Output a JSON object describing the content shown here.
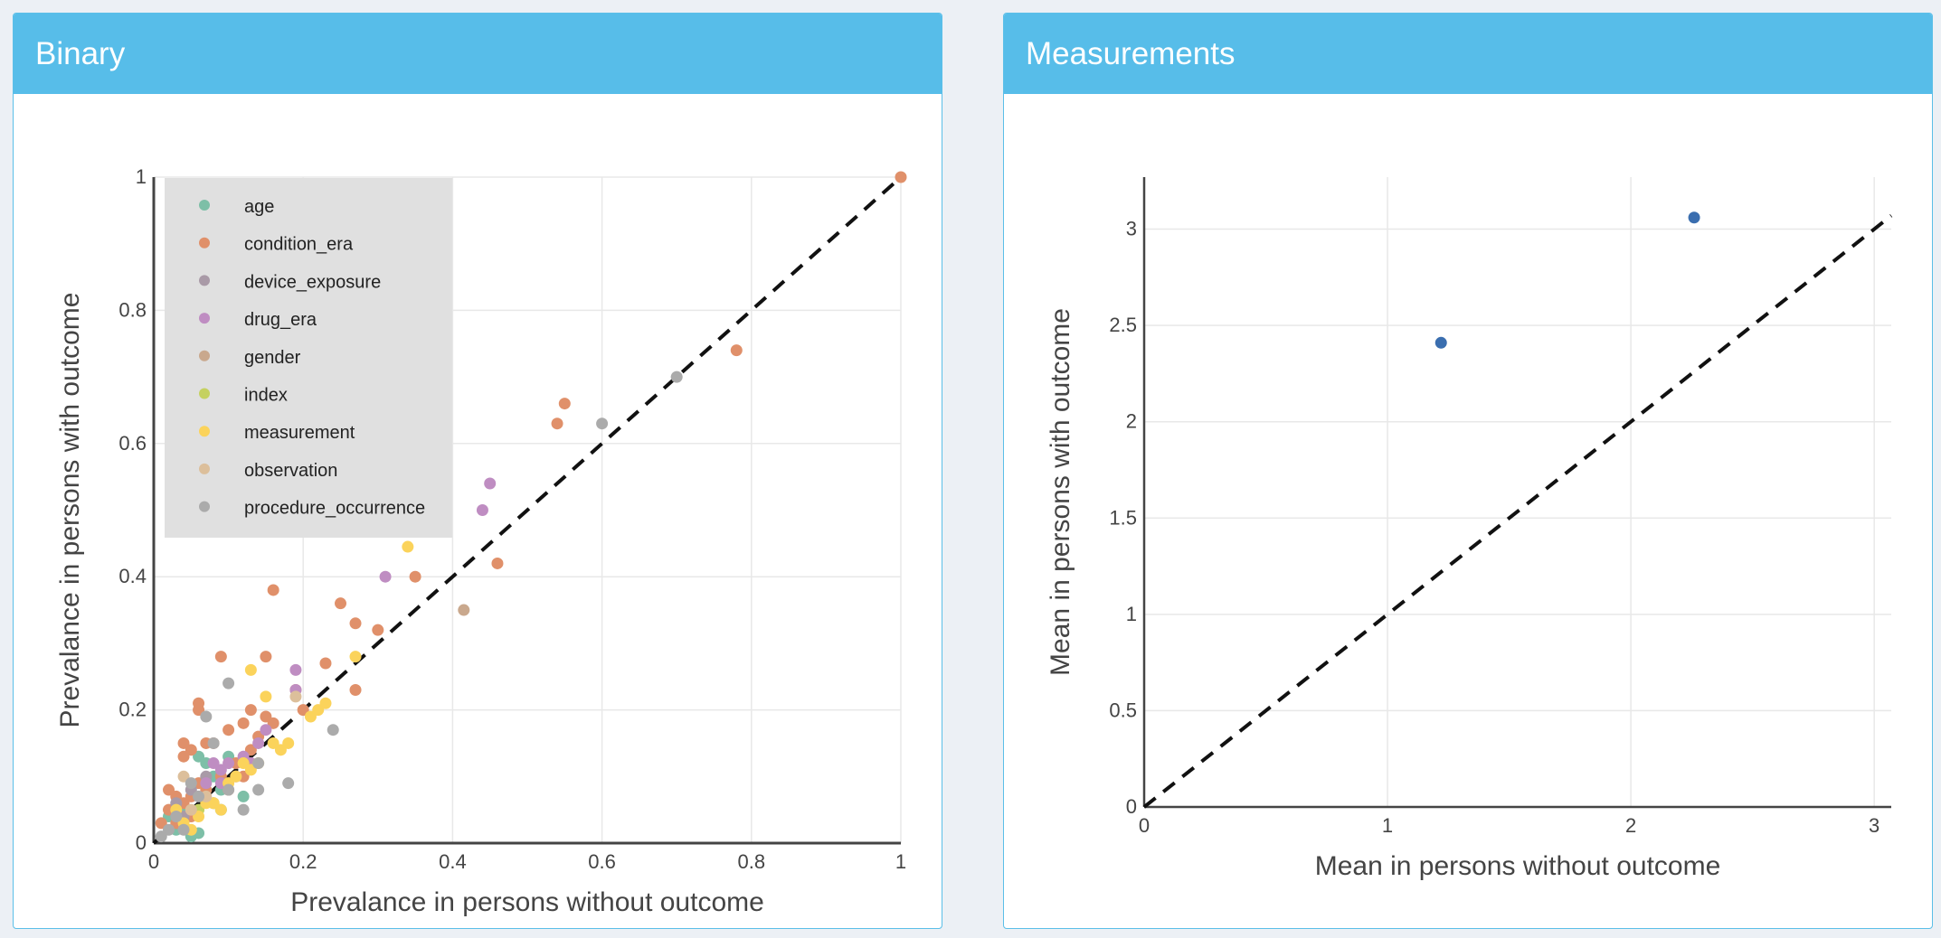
{
  "panels": {
    "binary": {
      "title": "Binary"
    },
    "measurements": {
      "title": "Measurements"
    }
  },
  "chart_data": [
    {
      "type": "scatter",
      "title": "Binary",
      "xlabel": "Prevalance in persons without outcome",
      "ylabel": "Prevalance in persons with outcome",
      "xlim": [
        0,
        1
      ],
      "ylim": [
        0,
        1
      ],
      "xticks": [
        0,
        0.2,
        0.4,
        0.6,
        0.8,
        1
      ],
      "yticks": [
        0,
        0.2,
        0.4,
        0.6,
        0.8,
        1
      ],
      "xtick_labels": [
        "0",
        "0.2",
        "0.4",
        "0.6",
        "0.8",
        "1"
      ],
      "ytick_labels": [
        "0",
        "0.2",
        "0.4",
        "0.6",
        "0.8",
        "1"
      ],
      "grid": true,
      "reference_line": "y = x (dashed)",
      "legend_position": "top-left",
      "series": [
        {
          "name": "age",
          "color": "#7dbfa7",
          "points": [
            [
              0.03,
              0.02
            ],
            [
              0.05,
              0.01
            ],
            [
              0.06,
              0.015
            ],
            [
              0.07,
              0.12
            ],
            [
              0.06,
              0.13
            ],
            [
              0.09,
              0.08
            ],
            [
              0.1,
              0.13
            ],
            [
              0.09,
              0.05
            ],
            [
              0.12,
              0.07
            ],
            [
              0.04,
              0.05
            ],
            [
              0.02,
              0.04
            ],
            [
              0.08,
              0.1
            ]
          ]
        },
        {
          "name": "condition_era",
          "color": "#e0906a",
          "points": [
            [
              1.0,
              1.0
            ],
            [
              0.78,
              0.74
            ],
            [
              0.55,
              0.66
            ],
            [
              0.54,
              0.63
            ],
            [
              0.46,
              0.42
            ],
            [
              0.35,
              0.4
            ],
            [
              0.3,
              0.32
            ],
            [
              0.27,
              0.33
            ],
            [
              0.25,
              0.36
            ],
            [
              0.27,
              0.23
            ],
            [
              0.23,
              0.27
            ],
            [
              0.16,
              0.38
            ],
            [
              0.15,
              0.28
            ],
            [
              0.09,
              0.28
            ],
            [
              0.06,
              0.21
            ],
            [
              0.06,
              0.2
            ],
            [
              0.05,
              0.14
            ],
            [
              0.04,
              0.15
            ],
            [
              0.08,
              0.15
            ],
            [
              0.1,
              0.17
            ],
            [
              0.12,
              0.18
            ],
            [
              0.13,
              0.2
            ],
            [
              0.15,
              0.19
            ],
            [
              0.14,
              0.16
            ],
            [
              0.16,
              0.18
            ],
            [
              0.19,
              0.23
            ],
            [
              0.2,
              0.2
            ],
            [
              0.11,
              0.12
            ],
            [
              0.09,
              0.1
            ],
            [
              0.07,
              0.08
            ],
            [
              0.05,
              0.07
            ],
            [
              0.04,
              0.06
            ],
            [
              0.03,
              0.07
            ],
            [
              0.02,
              0.05
            ],
            [
              0.01,
              0.03
            ],
            [
              0.03,
              0.03
            ],
            [
              0.05,
              0.04
            ],
            [
              0.06,
              0.09
            ],
            [
              0.08,
              0.06
            ],
            [
              0.1,
              0.08
            ],
            [
              0.12,
              0.1
            ],
            [
              0.02,
              0.08
            ],
            [
              0.04,
              0.13
            ],
            [
              0.07,
              0.15
            ],
            [
              0.13,
              0.14
            ]
          ]
        },
        {
          "name": "device_exposure",
          "color": "#a99aa7",
          "points": [
            [
              0.03,
              0.06
            ],
            [
              0.05,
              0.08
            ],
            [
              0.07,
              0.1
            ],
            [
              0.04,
              0.04
            ]
          ]
        },
        {
          "name": "drug_era",
          "color": "#bf8dc2",
          "points": [
            [
              0.45,
              0.54
            ],
            [
              0.44,
              0.5
            ],
            [
              0.31,
              0.4
            ],
            [
              0.19,
              0.26
            ],
            [
              0.19,
              0.23
            ],
            [
              0.15,
              0.17
            ],
            [
              0.14,
              0.15
            ],
            [
              0.12,
              0.13
            ],
            [
              0.1,
              0.12
            ],
            [
              0.09,
              0.11
            ],
            [
              0.08,
              0.12
            ],
            [
              0.11,
              0.1
            ],
            [
              0.13,
              0.12
            ],
            [
              0.07,
              0.09
            ],
            [
              0.09,
              0.09
            ]
          ]
        },
        {
          "name": "gender",
          "color": "#c9a88d",
          "points": [
            [
              0.415,
              0.35
            ]
          ]
        },
        {
          "name": "index",
          "color": "#c5d160",
          "points": [
            [
              0.08,
              0.06
            ],
            [
              0.06,
              0.05
            ]
          ]
        },
        {
          "name": "measurement",
          "color": "#fbd35b",
          "points": [
            [
              0.34,
              0.445
            ],
            [
              0.27,
              0.28
            ],
            [
              0.21,
              0.19
            ],
            [
              0.23,
              0.21
            ],
            [
              0.22,
              0.2
            ],
            [
              0.18,
              0.15
            ],
            [
              0.17,
              0.14
            ],
            [
              0.15,
              0.22
            ],
            [
              0.13,
              0.26
            ],
            [
              0.14,
              0.12
            ],
            [
              0.12,
              0.12
            ],
            [
              0.11,
              0.1
            ],
            [
              0.16,
              0.15
            ],
            [
              0.1,
              0.09
            ],
            [
              0.08,
              0.06
            ],
            [
              0.07,
              0.06
            ],
            [
              0.06,
              0.04
            ],
            [
              0.05,
              0.02
            ],
            [
              0.04,
              0.03
            ],
            [
              0.03,
              0.05
            ],
            [
              0.09,
              0.05
            ],
            [
              0.13,
              0.11
            ]
          ]
        },
        {
          "name": "observation",
          "color": "#dcbf9b",
          "points": [
            [
              0.19,
              0.22
            ],
            [
              0.07,
              0.07
            ],
            [
              0.05,
              0.05
            ],
            [
              0.04,
              0.1
            ]
          ]
        },
        {
          "name": "procedure_occurrence",
          "color": "#ababab",
          "points": [
            [
              0.7,
              0.7
            ],
            [
              0.6,
              0.63
            ],
            [
              0.24,
              0.17
            ],
            [
              0.18,
              0.09
            ],
            [
              0.12,
              0.05
            ],
            [
              0.1,
              0.24
            ],
            [
              0.07,
              0.19
            ],
            [
              0.08,
              0.15
            ],
            [
              0.14,
              0.12
            ],
            [
              0.14,
              0.08
            ],
            [
              0.1,
              0.08
            ],
            [
              0.06,
              0.07
            ],
            [
              0.05,
              0.09
            ],
            [
              0.03,
              0.04
            ],
            [
              0.02,
              0.02
            ],
            [
              0.01,
              0.01
            ],
            [
              0.04,
              0.02
            ]
          ]
        }
      ]
    },
    {
      "type": "scatter",
      "title": "Measurements",
      "xlabel": "Mean in persons without outcome",
      "ylabel": "Mean in persons with outcome",
      "xlim": [
        0,
        3.07
      ],
      "ylim": [
        0,
        3.27
      ],
      "xticks": [
        0,
        1,
        2,
        3
      ],
      "yticks": [
        0,
        0.5,
        1,
        1.5,
        2,
        2.5,
        3
      ],
      "xtick_labels": [
        "0",
        "1",
        "2",
        "3"
      ],
      "ytick_labels": [
        "0",
        "0.5",
        "1",
        "1.5",
        "2",
        "2.5",
        "3"
      ],
      "grid": true,
      "reference_line": "y = x (dashed)",
      "series": [
        {
          "name": "",
          "color": "#3a6eaf",
          "points": [
            [
              1.22,
              2.41
            ],
            [
              2.26,
              3.06
            ]
          ]
        }
      ]
    }
  ]
}
